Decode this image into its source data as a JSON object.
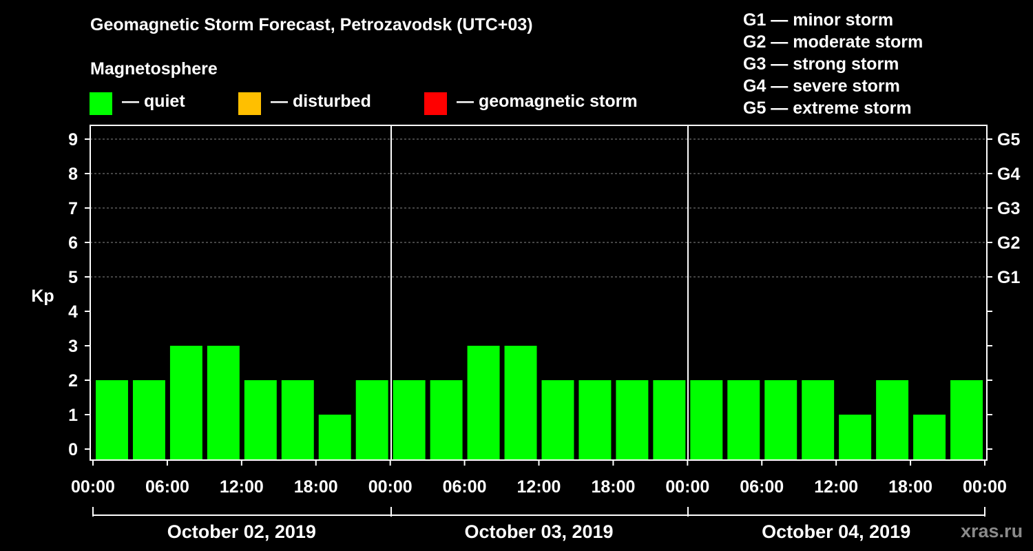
{
  "header": {
    "title": "Geomagnetic Storm Forecast, Petrozavodsk (UTC+03)",
    "subtitle": "Magnetosphere"
  },
  "legend": [
    {
      "label": "— quiet",
      "color": "#00ff00"
    },
    {
      "label": "— disturbed",
      "color": "#ffbf00"
    },
    {
      "label": "— geomagnetic storm",
      "color": "#ff0000"
    }
  ],
  "storm_scale": [
    "G1 — minor storm",
    "G2 — moderate storm",
    "G3 — strong storm",
    "G4 — severe storm",
    "G5 — extreme storm"
  ],
  "watermark": "xras.ru",
  "chart_data": {
    "type": "bar",
    "title": "Geomagnetic Storm Forecast, Petrozavodsk (UTC+03)",
    "ylabel": "Kp",
    "ylim": [
      0,
      9
    ],
    "yticks": [
      "0",
      "1",
      "2",
      "3",
      "4",
      "5",
      "6",
      "7",
      "8",
      "9"
    ],
    "right_ticks": [
      {
        "kp": 5,
        "label": "G1"
      },
      {
        "kp": 6,
        "label": "G2"
      },
      {
        "kp": 7,
        "label": "G3"
      },
      {
        "kp": 8,
        "label": "G4"
      },
      {
        "kp": 9,
        "label": "G5"
      }
    ],
    "xtick_labels": [
      "00:00",
      "06:00",
      "12:00",
      "18:00",
      "00:00",
      "06:00",
      "12:00",
      "18:00",
      "00:00",
      "06:00",
      "12:00",
      "18:00",
      "00:00"
    ],
    "days": [
      "October 02, 2019",
      "October 03, 2019",
      "October 04, 2019"
    ],
    "interval_hours": 3,
    "values": [
      2,
      2,
      3,
      3,
      2,
      2,
      1,
      2,
      2,
      2,
      3,
      3,
      2,
      2,
      2,
      2,
      2,
      2,
      2,
      2,
      1,
      2,
      1,
      2
    ],
    "bar_color": "#00ff00",
    "grid": true
  }
}
